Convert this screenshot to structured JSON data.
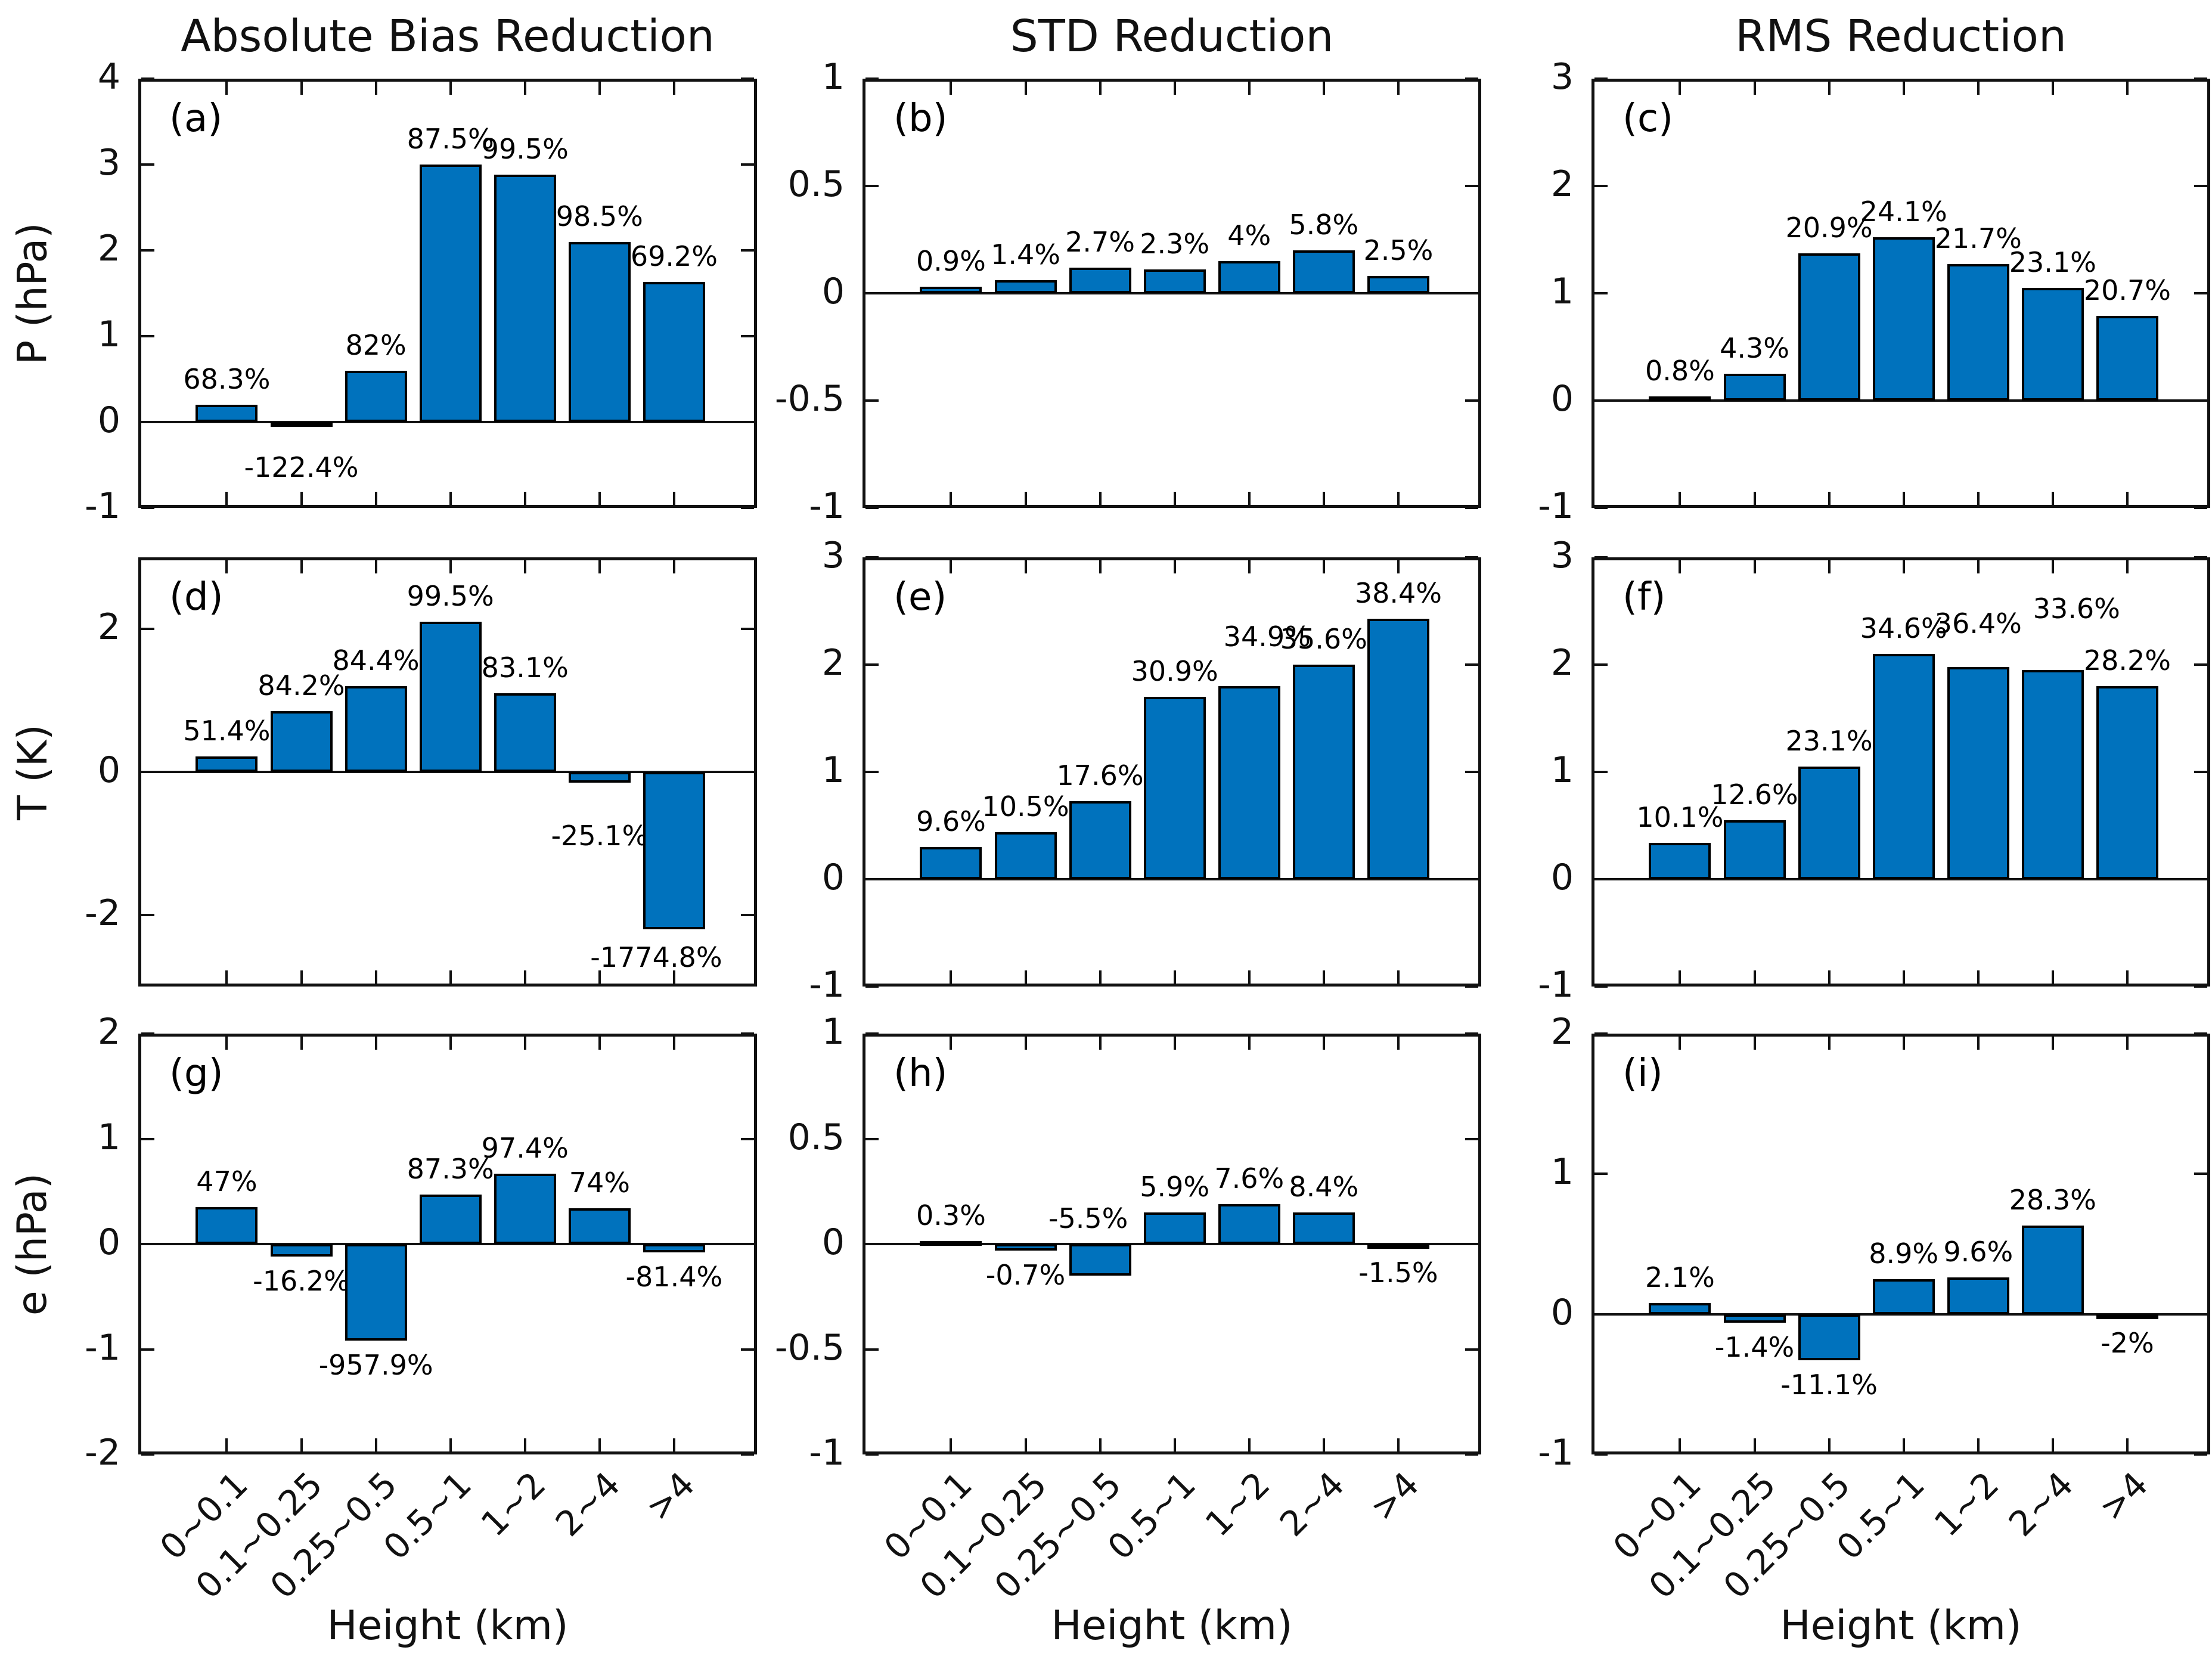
{
  "figure": {
    "columns": [
      {
        "title": "Absolute Bias Reduction"
      },
      {
        "title": "STD Reduction"
      },
      {
        "title": "RMS Reduction"
      }
    ],
    "rows": [
      {
        "ylabel": "P (hPa)"
      },
      {
        "ylabel": "T (K)"
      },
      {
        "ylabel": "e (hPa)"
      }
    ],
    "xlabel": "Height (km)",
    "categories": [
      "0~0.1",
      "0.1~0.25",
      "0.25~0.5",
      "0.5~1",
      "1~2",
      "2~4",
      ">4"
    ]
  },
  "colors": {
    "bar_fill": "#0072BD",
    "bar_edge": "#000000",
    "axis": "#111111"
  },
  "chart_data": [
    {
      "type": "bar",
      "panel": "(a)",
      "row": 0,
      "col": 0,
      "title": "Absolute Bias Reduction",
      "ylabel": "P (hPa)",
      "ylim": [
        -1,
        4
      ],
      "yticks": [
        "4",
        "3",
        "2",
        "1",
        "0",
        "-1"
      ],
      "ytick_values": [
        4,
        3,
        2,
        1,
        0,
        -1
      ],
      "values": [
        0.2,
        -0.05,
        0.6,
        3.0,
        2.88,
        2.1,
        1.63
      ],
      "labels": [
        "68.3%",
        "-122.4%",
        "82%",
        "87.5%",
        "99.5%",
        "98.5%",
        "69.2%"
      ],
      "label_sides": [
        "above",
        "below",
        "above",
        "above",
        "above",
        "above",
        "above"
      ],
      "label_dy": [
        0,
        28,
        0,
        0,
        0,
        0,
        0
      ],
      "label_dx": [
        0,
        0,
        0,
        0,
        0,
        0,
        0
      ]
    },
    {
      "type": "bar",
      "panel": "(b)",
      "row": 0,
      "col": 1,
      "title": "STD Reduction",
      "ylabel": "",
      "ylim": [
        -1,
        1
      ],
      "yticks": [
        "1",
        "0.5",
        "0",
        "-0.5",
        "-1"
      ],
      "ytick_values": [
        1,
        0.5,
        0,
        -0.5,
        -1
      ],
      "values": [
        0.03,
        0.06,
        0.12,
        0.11,
        0.15,
        0.2,
        0.08
      ],
      "labels": [
        "0.9%",
        "1.4%",
        "2.7%",
        "2.3%",
        "4%",
        "5.8%",
        "2.5%"
      ],
      "label_sides": [
        "above",
        "above",
        "above",
        "above",
        "above",
        "above",
        "above"
      ],
      "label_dy": [
        0,
        0,
        0,
        0,
        0,
        0,
        0
      ],
      "label_dx": [
        0,
        0,
        0,
        0,
        0,
        0,
        0
      ]
    },
    {
      "type": "bar",
      "panel": "(c)",
      "row": 0,
      "col": 2,
      "title": "RMS Reduction",
      "ylabel": "",
      "ylim": [
        -1,
        3
      ],
      "yticks": [
        "3",
        "2",
        "1",
        "0",
        "-1"
      ],
      "ytick_values": [
        3,
        2,
        1,
        0,
        -1
      ],
      "values": [
        0.04,
        0.25,
        1.37,
        1.52,
        1.27,
        1.05,
        0.79
      ],
      "labels": [
        "0.8%",
        "4.3%",
        "20.9%",
        "24.1%",
        "21.7%",
        "23.1%",
        "20.7%"
      ],
      "label_sides": [
        "above",
        "above",
        "above",
        "above",
        "above",
        "above",
        "above"
      ],
      "label_dy": [
        0,
        0,
        0,
        0,
        0,
        0,
        0
      ],
      "label_dx": [
        0,
        0,
        0,
        0,
        0,
        0,
        0
      ]
    },
    {
      "type": "bar",
      "panel": "(d)",
      "row": 1,
      "col": 0,
      "title": "",
      "ylabel": "T (K)",
      "ylim": [
        -3,
        3
      ],
      "yticks": [
        "2",
        "0",
        "-2"
      ],
      "ytick_values": [
        2,
        0,
        -2
      ],
      "values": [
        0.22,
        0.85,
        1.2,
        2.1,
        1.1,
        -0.15,
        -2.2
      ],
      "labels": [
        "51.4%",
        "84.2%",
        "84.4%",
        "99.5%",
        "83.1%",
        "-25.1%",
        "-1774.8%"
      ],
      "label_sides": [
        "above",
        "above",
        "above",
        "above",
        "above",
        "below",
        "below"
      ],
      "label_dy": [
        0,
        0,
        0,
        0,
        0,
        48,
        6
      ],
      "label_dx": [
        0,
        0,
        0,
        0,
        0,
        0,
        -30
      ]
    },
    {
      "type": "bar",
      "panel": "(e)",
      "row": 1,
      "col": 1,
      "title": "",
      "ylabel": "",
      "ylim": [
        -1,
        3
      ],
      "yticks": [
        "3",
        "2",
        "1",
        "0",
        "-1"
      ],
      "ytick_values": [
        3,
        2,
        1,
        0,
        -1
      ],
      "values": [
        0.3,
        0.44,
        0.73,
        1.7,
        1.8,
        2.0,
        2.43
      ],
      "labels": [
        "9.6%",
        "10.5%",
        "17.6%",
        "30.9%",
        "34.9%",
        "35.6%",
        "38.4%"
      ],
      "label_sides": [
        "above",
        "above",
        "above",
        "above",
        "above",
        "above",
        "above"
      ],
      "label_dy": [
        0,
        0,
        0,
        0,
        -40,
        0,
        0
      ],
      "label_dx": [
        0,
        0,
        0,
        0,
        30,
        0,
        0
      ]
    },
    {
      "type": "bar",
      "panel": "(f)",
      "row": 1,
      "col": 2,
      "title": "",
      "ylabel": "",
      "ylim": [
        -1,
        3
      ],
      "yticks": [
        "3",
        "2",
        "1",
        "0",
        "-1"
      ],
      "ytick_values": [
        3,
        2,
        1,
        0,
        -1
      ],
      "values": [
        0.34,
        0.55,
        1.05,
        2.1,
        1.98,
        1.95,
        1.8
      ],
      "labels": [
        "10.1%",
        "12.6%",
        "23.1%",
        "34.6%",
        "36.4%",
        "33.6%",
        "28.2%"
      ],
      "label_sides": [
        "above",
        "above",
        "above",
        "above",
        "above",
        "above",
        "above"
      ],
      "label_dy": [
        0,
        0,
        0,
        0,
        -30,
        -60,
        0
      ],
      "label_dx": [
        0,
        0,
        0,
        0,
        0,
        40,
        0
      ]
    },
    {
      "type": "bar",
      "panel": "(g)",
      "row": 2,
      "col": 0,
      "title": "",
      "ylabel": "e (hPa)",
      "ylim": [
        -2,
        2
      ],
      "yticks": [
        "2",
        "1",
        "0",
        "-1",
        "-2"
      ],
      "ytick_values": [
        2,
        1,
        0,
        -1,
        -2
      ],
      "values": [
        0.35,
        -0.12,
        -0.92,
        0.47,
        0.67,
        0.34,
        -0.08
      ],
      "labels": [
        "47%",
        "-16.2%",
        "-957.9%",
        "87.3%",
        "97.4%",
        "74%",
        "-81.4%"
      ],
      "label_sides": [
        "above",
        "below",
        "below",
        "above",
        "above",
        "above",
        "below"
      ],
      "label_dy": [
        0,
        0,
        0,
        0,
        0,
        0,
        0
      ],
      "label_dx": [
        0,
        0,
        0,
        0,
        0,
        0,
        0
      ]
    },
    {
      "type": "bar",
      "panel": "(h)",
      "row": 2,
      "col": 1,
      "title": "",
      "ylabel": "",
      "ylim": [
        -1,
        1
      ],
      "yticks": [
        "1",
        "0.5",
        "0",
        "-0.5",
        "-1"
      ],
      "ytick_values": [
        1,
        0.5,
        0,
        -0.5,
        -1
      ],
      "values": [
        0.015,
        -0.03,
        -0.15,
        0.15,
        0.19,
        0.15,
        -0.02
      ],
      "labels": [
        "0.3%",
        "-0.7%",
        "-5.5%",
        "5.9%",
        "7.6%",
        "8.4%",
        "-1.5%"
      ],
      "label_sides": [
        "above",
        "below",
        "above",
        "above",
        "above",
        "above",
        "below"
      ],
      "label_dy": [
        0,
        0,
        0,
        0,
        0,
        0,
        0
      ],
      "label_dx": [
        0,
        0,
        -20,
        0,
        0,
        0,
        0
      ]
    },
    {
      "type": "bar",
      "panel": "(i)",
      "row": 2,
      "col": 2,
      "title": "",
      "ylabel": "",
      "ylim": [
        -1,
        2
      ],
      "yticks": [
        "2",
        "1",
        "0",
        "-1"
      ],
      "ytick_values": [
        2,
        1,
        0,
        -1
      ],
      "values": [
        0.08,
        -0.06,
        -0.33,
        0.25,
        0.26,
        0.63,
        -0.03
      ],
      "labels": [
        "2.1%",
        "-1.4%",
        "-11.1%",
        "8.9%",
        "9.6%",
        "28.3%",
        "-2%"
      ],
      "label_sides": [
        "above",
        "below",
        "below",
        "above",
        "above",
        "above",
        "below"
      ],
      "label_dy": [
        0,
        0,
        0,
        0,
        0,
        0,
        0
      ],
      "label_dx": [
        0,
        0,
        0,
        0,
        0,
        0,
        0
      ]
    }
  ]
}
